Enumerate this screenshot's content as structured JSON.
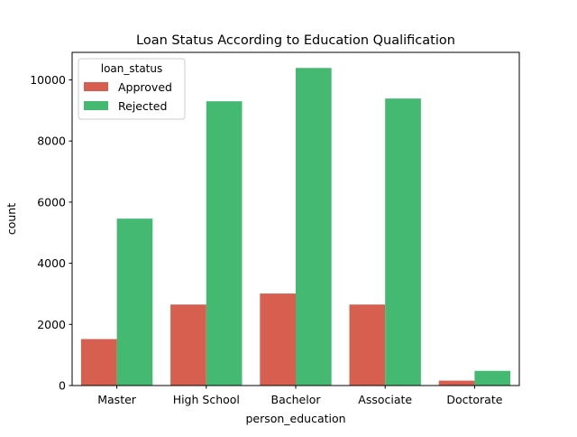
{
  "chart_data": {
    "type": "bar",
    "title": "Loan Status According to Education Qualification",
    "xlabel": "person_education",
    "ylabel": "count",
    "categories": [
      "Master",
      "High School",
      "Bachelor",
      "Associate",
      "Doctorate"
    ],
    "series": [
      {
        "name": "Approved",
        "color": "#d65f50",
        "values": [
          1520,
          2650,
          3010,
          2650,
          160
        ]
      },
      {
        "name": "Rejected",
        "color": "#43b972",
        "values": [
          5460,
          9300,
          10390,
          9390,
          480
        ]
      }
    ],
    "ylim": [
      0,
      10900
    ],
    "yticks": [
      0,
      2000,
      4000,
      6000,
      8000,
      10000
    ],
    "legend": {
      "title": "loan_status",
      "placement": "top-left"
    },
    "grid": false
  }
}
